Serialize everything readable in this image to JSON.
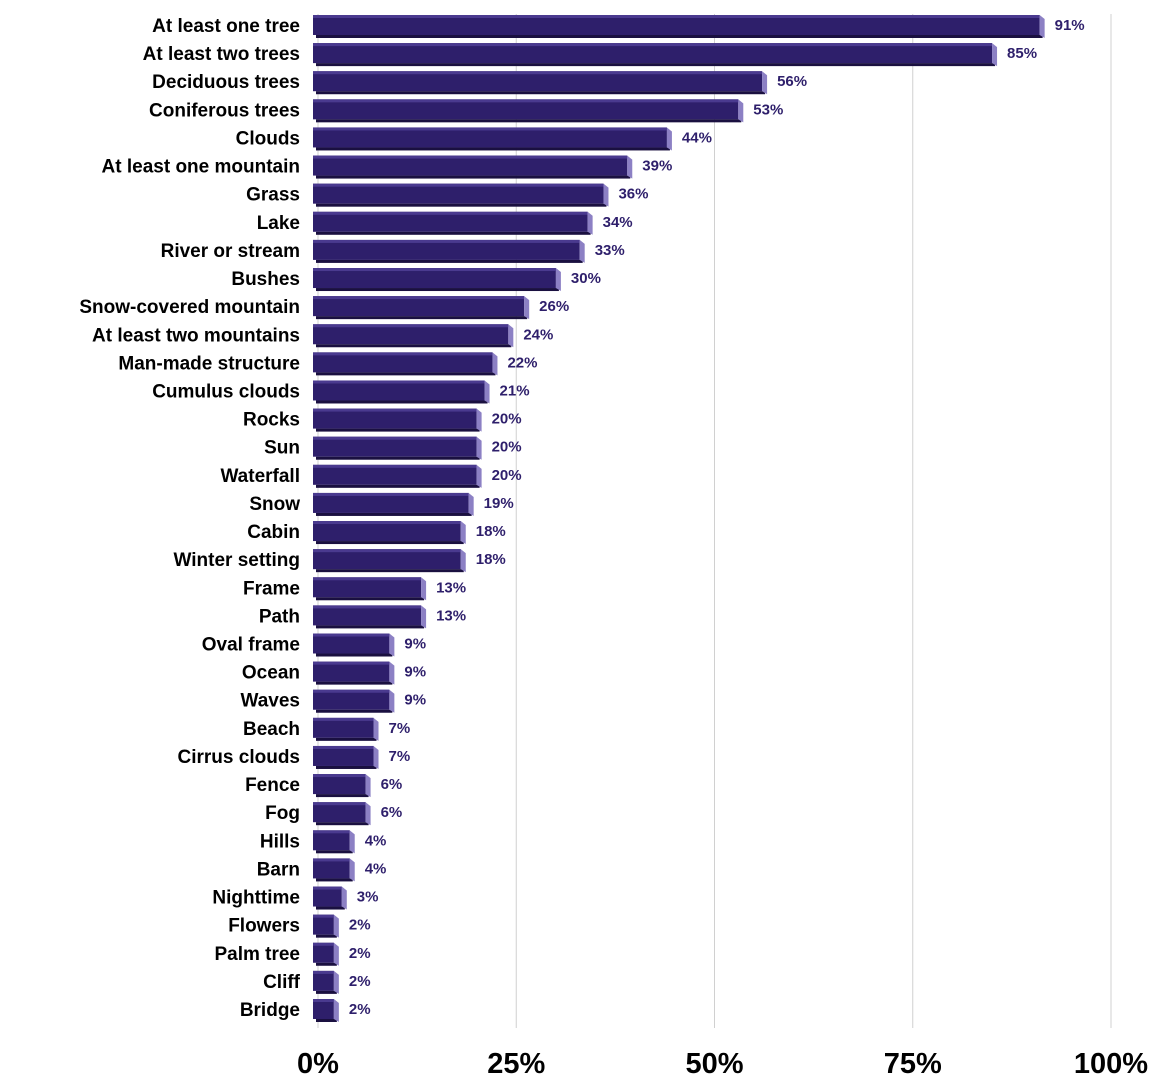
{
  "chart_data": {
    "type": "bar",
    "orientation": "horizontal",
    "categories": [
      "At least one tree",
      "At least two trees",
      "Deciduous trees",
      "Coniferous trees",
      "Clouds",
      "At least one mountain",
      "Grass",
      "Lake",
      "River or stream",
      "Bushes",
      "Snow-covered mountain",
      "At least two mountains",
      "Man-made structure",
      "Cumulus clouds",
      "Rocks",
      "Sun",
      "Waterfall",
      "Snow",
      "Cabin",
      "Winter setting",
      "Frame",
      "Path",
      "Oval frame",
      "Ocean",
      "Waves",
      "Beach",
      "Cirrus clouds",
      "Fence",
      "Fog",
      "Hills",
      "Barn",
      "Nighttime",
      "Flowers",
      "Palm tree",
      "Cliff",
      "Bridge"
    ],
    "values": [
      91,
      85,
      56,
      53,
      44,
      39,
      36,
      34,
      33,
      30,
      26,
      24,
      22,
      21,
      20,
      20,
      20,
      19,
      18,
      18,
      13,
      13,
      9,
      9,
      9,
      7,
      7,
      6,
      6,
      4,
      4,
      3,
      2,
      2,
      2,
      2
    ],
    "value_labels": [
      "91%",
      "85%",
      "56%",
      "53%",
      "44%",
      "39%",
      "36%",
      "34%",
      "33%",
      "30%",
      "26%",
      "24%",
      "22%",
      "21%",
      "20%",
      "20%",
      "20%",
      "19%",
      "18%",
      "18%",
      "13%",
      "13%",
      "9%",
      "9%",
      "9%",
      "7%",
      "7%",
      "6%",
      "6%",
      "4%",
      "4%",
      "3%",
      "2%",
      "2%",
      "2%",
      "2%"
    ],
    "x_ticks": [
      0,
      25,
      50,
      75,
      100
    ],
    "x_tick_labels": [
      "0%",
      "25%",
      "50%",
      "75%",
      "100%"
    ],
    "xlim": [
      0,
      100
    ],
    "title": "",
    "xlabel": "",
    "ylabel": "",
    "grid": true,
    "legend": "none",
    "colors": {
      "bar_front": "#2e1f6b",
      "bar_top": "#4a3a8f",
      "bar_bottom": "#1a1040",
      "bar_side": "#8c80c4",
      "value_text": "#2e1f6b",
      "grid": "#d0d0d0"
    }
  }
}
